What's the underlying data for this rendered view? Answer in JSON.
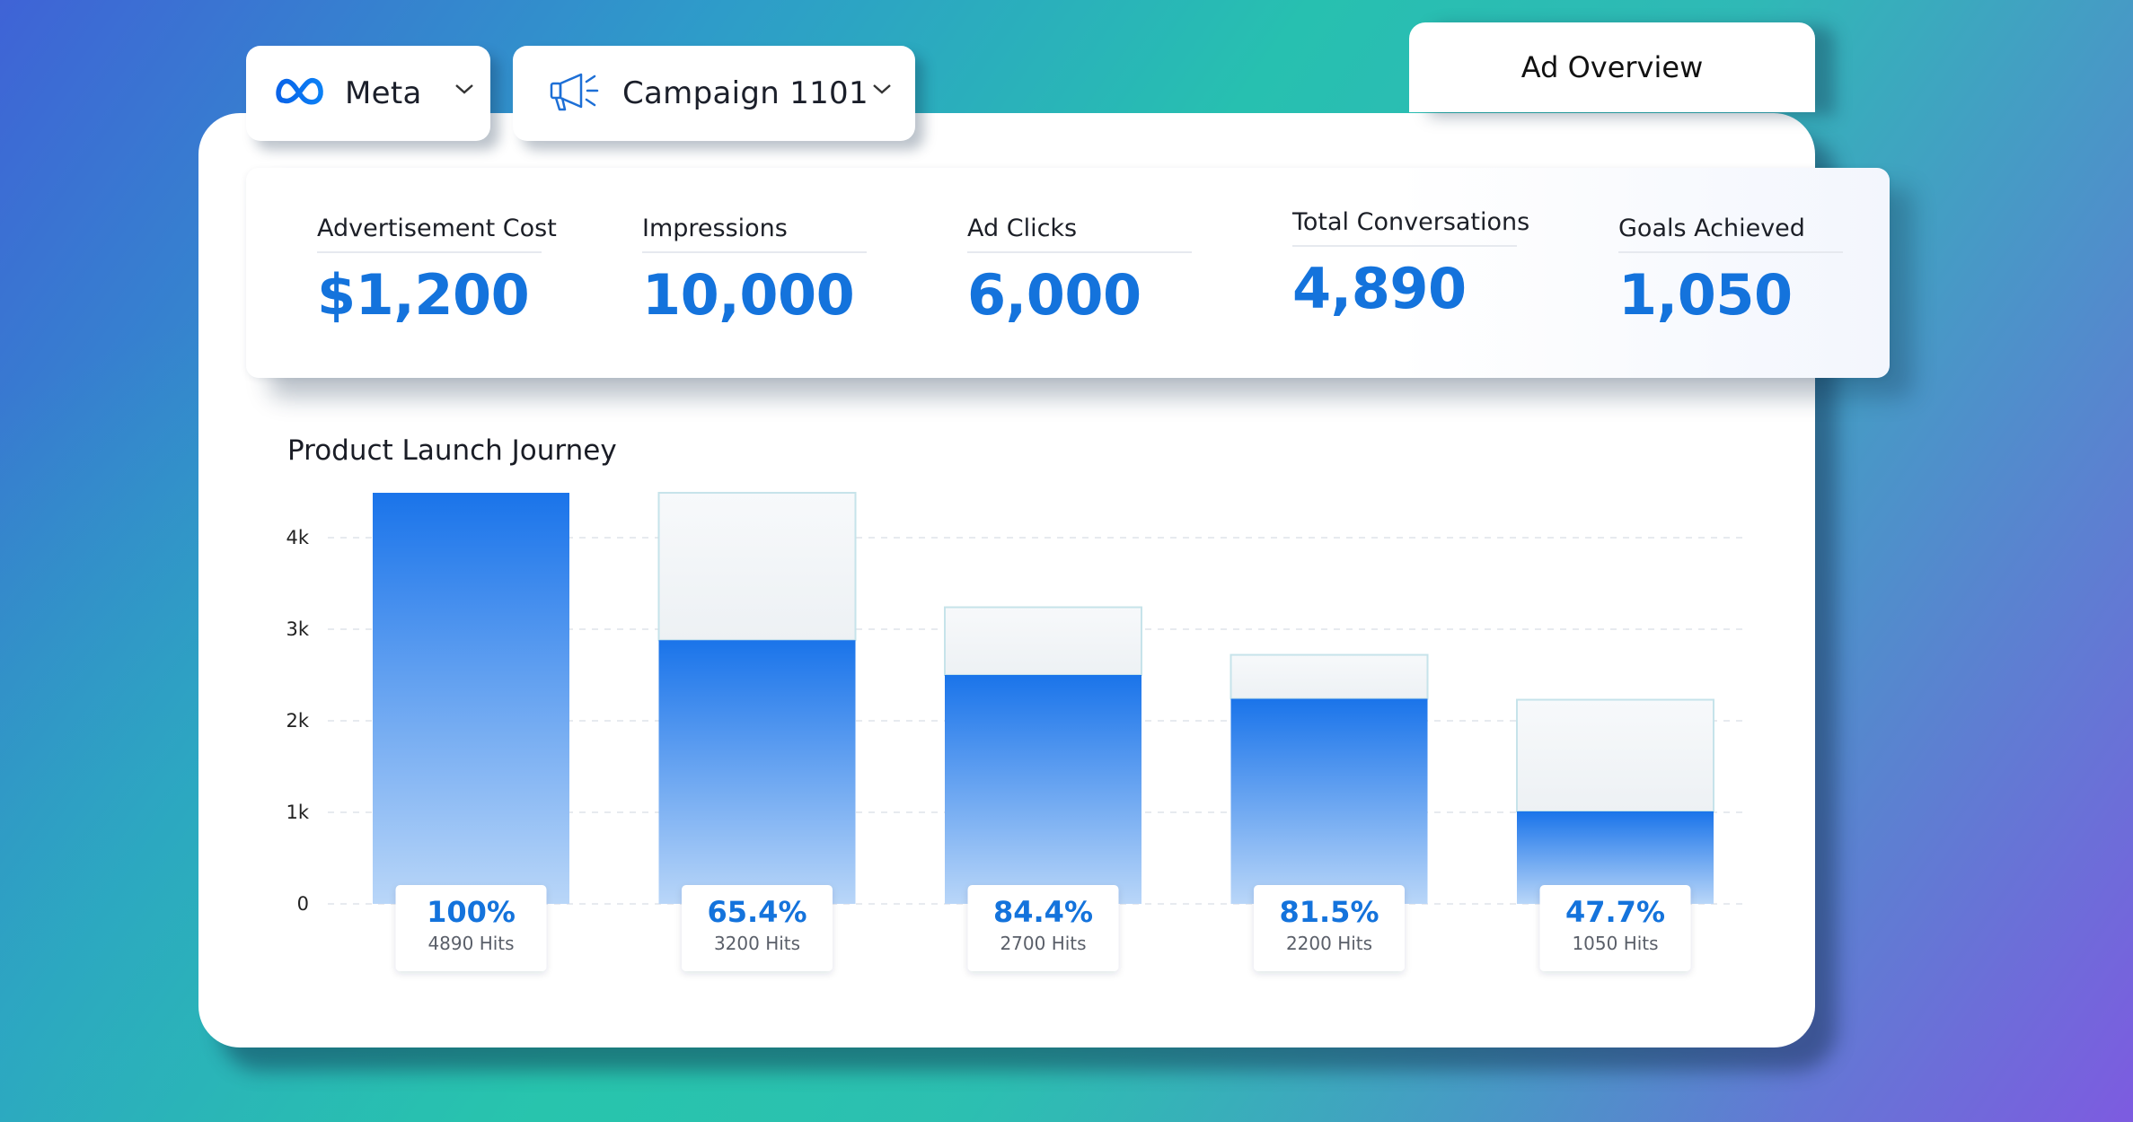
{
  "selectors": {
    "platform": {
      "label": "Meta"
    },
    "campaign": {
      "label": "Campaign 1101"
    }
  },
  "tab": {
    "label": "Ad Overview"
  },
  "stats": [
    {
      "label": "Advertisement Cost",
      "value": "$1,200"
    },
    {
      "label": "Impressions",
      "value": "10,000"
    },
    {
      "label": "Ad Clicks",
      "value": "6,000"
    },
    {
      "label": "Total Conversations",
      "value": "4,890"
    },
    {
      "label": "Goals Achieved",
      "value": "1,050"
    }
  ],
  "colors": {
    "accent": "#1473dc",
    "bar_top": "#1f76ea",
    "bar_bottom": "#b6d3f7"
  },
  "chart_data": {
    "type": "bar",
    "title": "Product Launch Journey",
    "yticks": [
      "0",
      "1k",
      "2k",
      "3k",
      "4k"
    ],
    "ylim": [
      0,
      4500
    ],
    "grid": true,
    "bars": [
      {
        "value": 4490,
        "outline": 4490,
        "percent": "100%",
        "hits": "4890 Hits"
      },
      {
        "value": 2880,
        "outline": 4490,
        "percent": "65.4%",
        "hits": "3200 Hits"
      },
      {
        "value": 2500,
        "outline": 3240,
        "percent": "84.4%",
        "hits": "2700 Hits"
      },
      {
        "value": 2240,
        "outline": 2720,
        "percent": "81.5%",
        "hits": "2200 Hits"
      },
      {
        "value": 1010,
        "outline": 2230,
        "percent": "47.7%",
        "hits": "1050 Hits"
      }
    ]
  }
}
